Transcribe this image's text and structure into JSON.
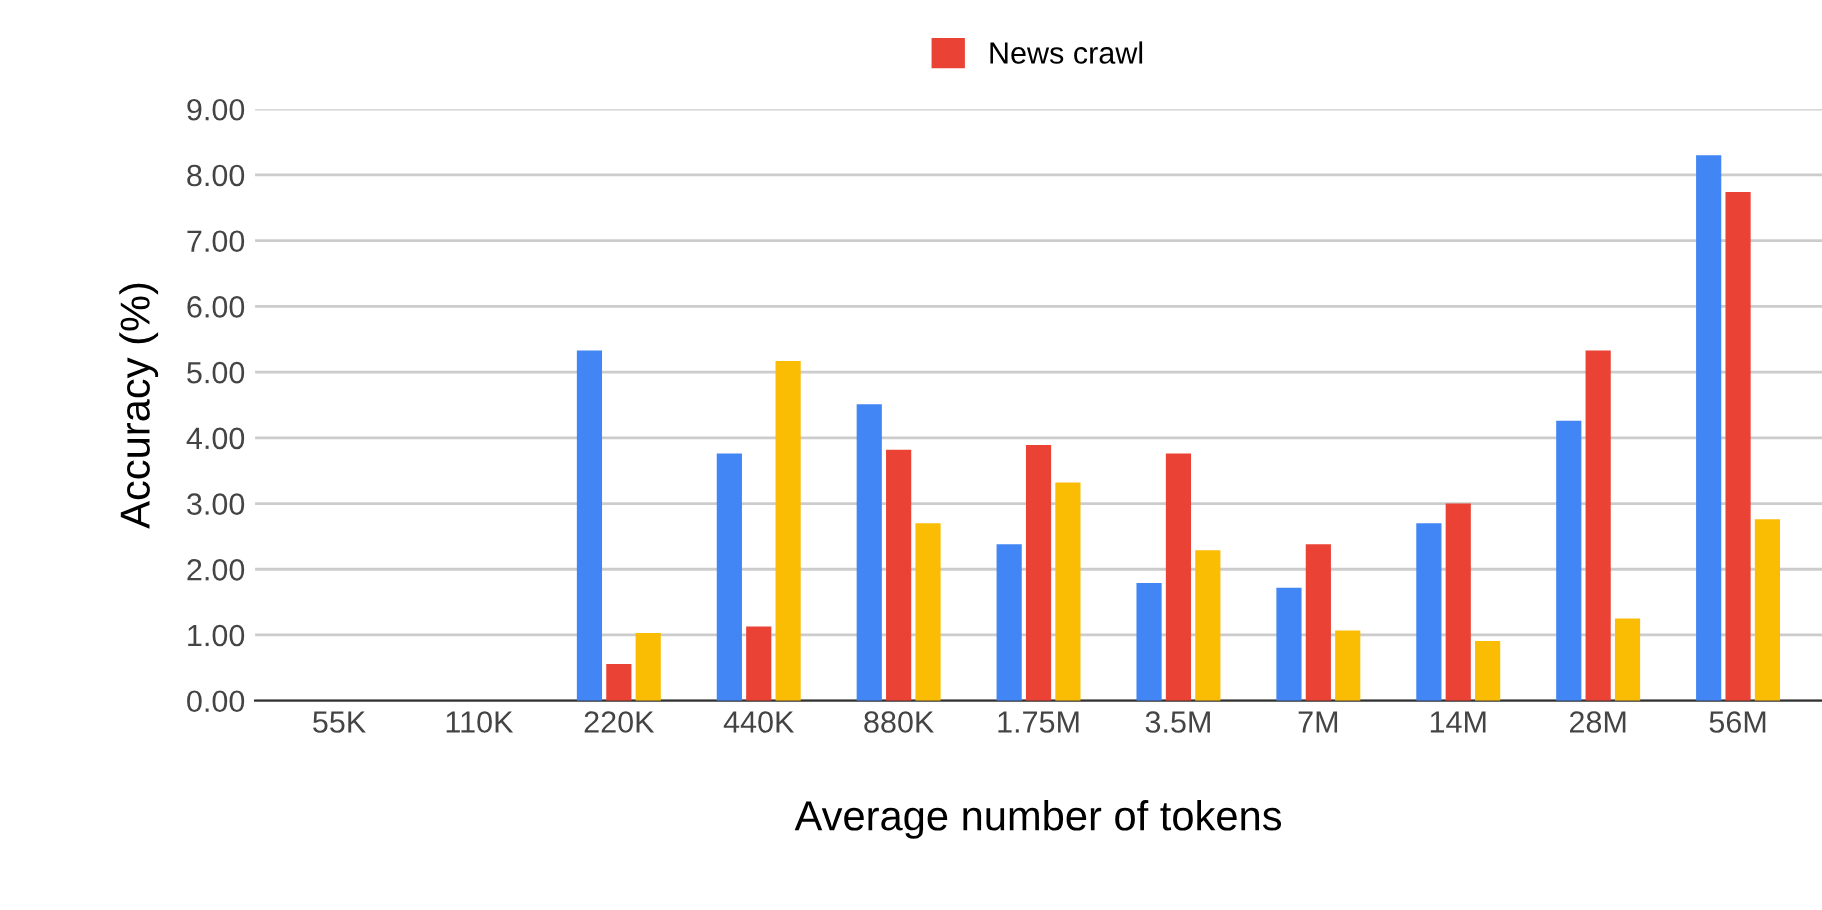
{
  "chart_data": {
    "type": "bar",
    "xlabel": "Average number of tokens",
    "ylabel": "Accuracy (%)",
    "categories": [
      "55K",
      "110K",
      "220K",
      "440K",
      "880K",
      "1.75M",
      "3.5M",
      "7M",
      "14M",
      "28M",
      "56M"
    ],
    "series": [
      {
        "color": "#4285f4",
        "values": [
          0,
          0,
          5.33,
          3.76,
          4.51,
          2.38,
          1.79,
          1.72,
          2.7,
          4.26,
          8.3
        ]
      },
      {
        "name": "News crawl",
        "color": "#ea4335",
        "values": [
          0,
          0,
          0.56,
          1.13,
          3.82,
          3.89,
          3.76,
          2.38,
          3.0,
          5.33,
          7.74
        ]
      },
      {
        "color": "#fbbc04",
        "values": [
          0,
          0,
          1.03,
          5.17,
          2.7,
          3.32,
          2.29,
          1.07,
          0.91,
          1.25,
          2.76
        ]
      }
    ],
    "ylim": [
      0,
      9
    ],
    "yticks": [
      {
        "value": 0,
        "label": "0.00"
      },
      {
        "value": 1,
        "label": "1.00"
      },
      {
        "value": 2,
        "label": "2.00"
      },
      {
        "value": 3,
        "label": "3.00"
      },
      {
        "value": 4,
        "label": "4.00"
      },
      {
        "value": 5,
        "label": "5.00"
      },
      {
        "value": 6,
        "label": "6.00"
      },
      {
        "value": 7,
        "label": "7.00"
      },
      {
        "value": 8,
        "label": "8.00"
      },
      {
        "value": 9,
        "label": "9.00"
      }
    ],
    "grid": "y",
    "legend": "top"
  }
}
